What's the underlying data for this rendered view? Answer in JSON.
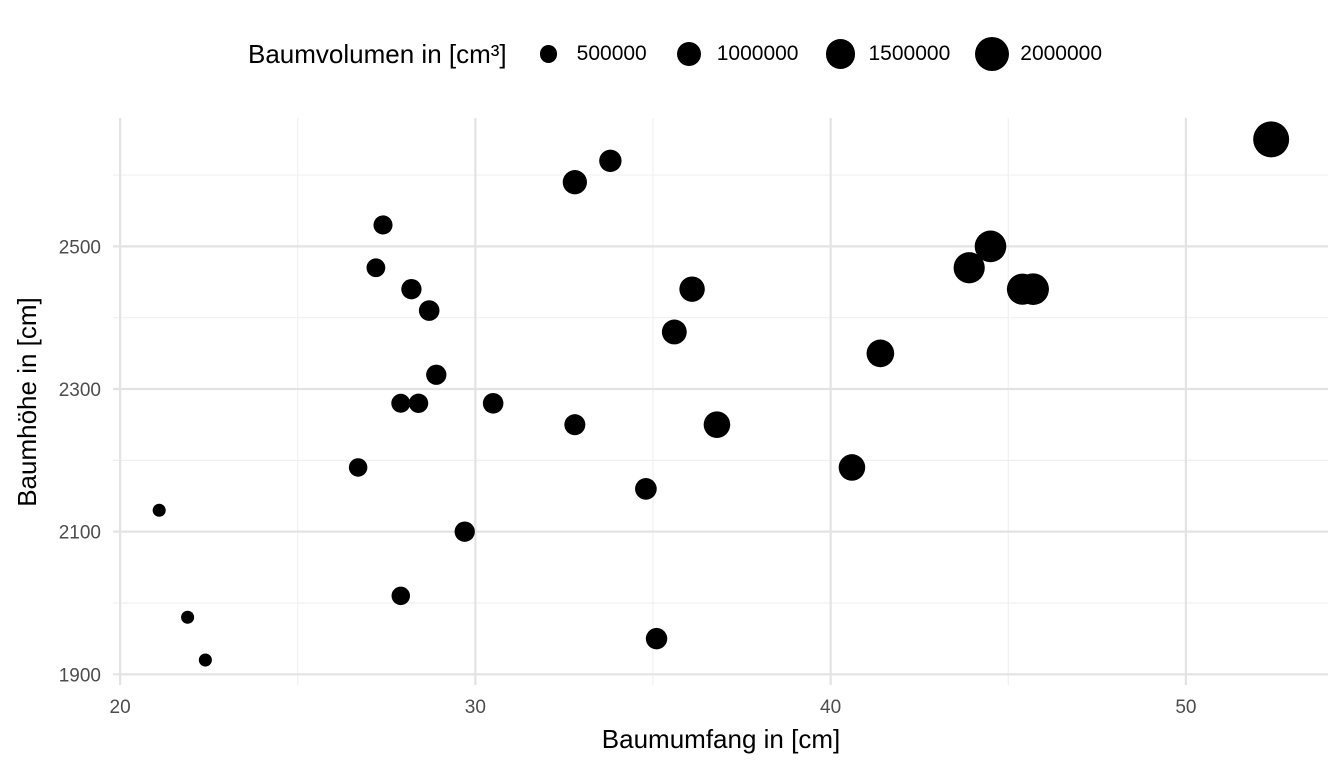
{
  "chart_data": {
    "type": "scatter",
    "xlabel": "Baumumfang in [cm]",
    "ylabel": "Baumhöhe in [cm]",
    "xlim": [
      19.8,
      54.0
    ],
    "ylim": [
      1885,
      2680
    ],
    "xticks": [
      20,
      30,
      40,
      50
    ],
    "yticks": [
      1900,
      2100,
      2300,
      2500
    ],
    "grid": true,
    "legend": {
      "title": "Baumvolumen in [cm³]",
      "position": "top",
      "entries": [
        {
          "label": "500000",
          "value": 500000
        },
        {
          "label": "1000000",
          "value": 1000000
        },
        {
          "label": "1500000",
          "value": 1500000
        },
        {
          "label": "2000000",
          "value": 2000000
        }
      ]
    },
    "size_variable": "Baumvolumen in [cm³]",
    "point_color": "#000000",
    "points": [
      {
        "x": 21.1,
        "y": 2130,
        "size": 290000
      },
      {
        "x": 21.9,
        "y": 1980,
        "size": 290000
      },
      {
        "x": 22.4,
        "y": 1920,
        "size": 290000
      },
      {
        "x": 26.7,
        "y": 2190,
        "size": 580000
      },
      {
        "x": 27.2,
        "y": 2470,
        "size": 600000
      },
      {
        "x": 27.4,
        "y": 2530,
        "size": 620000
      },
      {
        "x": 27.9,
        "y": 2010,
        "size": 580000
      },
      {
        "x": 27.9,
        "y": 2280,
        "size": 610000
      },
      {
        "x": 28.2,
        "y": 2440,
        "size": 700000
      },
      {
        "x": 28.4,
        "y": 2280,
        "size": 640000
      },
      {
        "x": 28.7,
        "y": 2410,
        "size": 720000
      },
      {
        "x": 28.9,
        "y": 2320,
        "size": 700000
      },
      {
        "x": 29.7,
        "y": 2100,
        "size": 700000
      },
      {
        "x": 30.5,
        "y": 2280,
        "size": 720000
      },
      {
        "x": 32.8,
        "y": 2250,
        "size": 750000
      },
      {
        "x": 32.8,
        "y": 2590,
        "size": 1000000
      },
      {
        "x": 33.8,
        "y": 2620,
        "size": 850000
      },
      {
        "x": 34.8,
        "y": 2160,
        "size": 800000
      },
      {
        "x": 35.1,
        "y": 1950,
        "size": 780000
      },
      {
        "x": 35.6,
        "y": 2380,
        "size": 1050000
      },
      {
        "x": 36.1,
        "y": 2440,
        "size": 1100000
      },
      {
        "x": 36.8,
        "y": 2250,
        "size": 1200000
      },
      {
        "x": 40.6,
        "y": 2190,
        "size": 1200000
      },
      {
        "x": 41.4,
        "y": 2350,
        "size": 1300000
      },
      {
        "x": 43.9,
        "y": 2470,
        "size": 1650000
      },
      {
        "x": 44.5,
        "y": 2500,
        "size": 1700000
      },
      {
        "x": 45.4,
        "y": 2440,
        "size": 1650000
      },
      {
        "x": 45.7,
        "y": 2440,
        "size": 1700000
      },
      {
        "x": 52.4,
        "y": 2650,
        "size": 2200000
      }
    ]
  }
}
